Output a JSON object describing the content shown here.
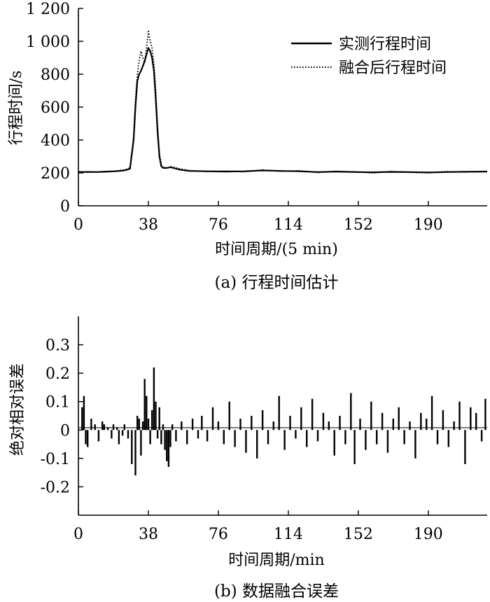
{
  "chart_data": [
    {
      "type": "line",
      "caption": "(a) 行程时间估计",
      "xlabel": "时间周期/(5 min)",
      "ylabel": "行程时间/s",
      "xlim": [
        0,
        222
      ],
      "ylim": [
        0,
        1200
      ],
      "xticks": [
        0,
        38,
        76,
        114,
        152,
        190
      ],
      "yticks": [
        0,
        200,
        400,
        600,
        800,
        1000,
        1200
      ],
      "ytick_labels": [
        "0",
        "200",
        "400",
        "600",
        "800",
        "1 000",
        "1 200"
      ],
      "legend_position": "top-right",
      "series": [
        {
          "name": "实测行程时间",
          "style": "solid",
          "x": [
            0,
            5,
            10,
            15,
            20,
            25,
            28,
            30,
            31,
            32,
            33,
            34,
            35,
            36,
            37,
            38,
            39,
            40,
            41,
            42,
            43,
            44,
            45,
            46,
            48,
            50,
            55,
            60,
            70,
            80,
            90,
            100,
            110,
            120,
            130,
            140,
            150,
            160,
            170,
            180,
            190,
            200,
            210,
            222
          ],
          "values": [
            205,
            206,
            205,
            208,
            210,
            215,
            225,
            400,
            600,
            760,
            800,
            820,
            850,
            880,
            920,
            960,
            940,
            900,
            820,
            650,
            450,
            300,
            240,
            230,
            230,
            235,
            220,
            212,
            210,
            208,
            210,
            215,
            212,
            210,
            205,
            208,
            205,
            204,
            206,
            205,
            203,
            205,
            207,
            208
          ]
        },
        {
          "name": "融合后行程时间",
          "style": "dotted",
          "x": [
            0,
            5,
            10,
            15,
            20,
            25,
            28,
            30,
            31,
            32,
            33,
            34,
            35,
            36,
            37,
            38,
            39,
            40,
            41,
            42,
            43,
            44,
            45,
            46,
            48,
            50,
            55,
            60,
            70,
            80,
            90,
            100,
            110,
            120,
            130,
            140,
            150,
            160,
            170,
            180,
            190,
            200,
            210,
            222
          ],
          "values": [
            208,
            204,
            207,
            205,
            212,
            218,
            230,
            420,
            640,
            800,
            880,
            940,
            900,
            870,
            960,
            1060,
            1000,
            960,
            860,
            700,
            480,
            320,
            250,
            235,
            228,
            238,
            225,
            215,
            208,
            212,
            207,
            218,
            210,
            213,
            202,
            210,
            207,
            200,
            209,
            203,
            200,
            208,
            205,
            210
          ]
        }
      ]
    },
    {
      "type": "bar",
      "caption": "(b)  数据融合误差",
      "xlabel": "时间周期/min",
      "ylabel": "绝对相对误差",
      "xlim": [
        0,
        222
      ],
      "ylim": [
        -0.3,
        0.4
      ],
      "xticks": [
        0,
        38,
        76,
        114,
        152,
        190
      ],
      "yticks": [
        -0.2,
        -0.1,
        0,
        0.1,
        0.2,
        0.3
      ],
      "ytick_labels": [
        "-0.2",
        "-0.1",
        "0",
        "0.1",
        "0.2",
        "0.3"
      ],
      "x": [
        2,
        3,
        4,
        5,
        7,
        9,
        11,
        13,
        14,
        16,
        18,
        19,
        21,
        22,
        24,
        25,
        27,
        29,
        31,
        32,
        33,
        34,
        35,
        36,
        37,
        38,
        39,
        40,
        41,
        42,
        43,
        44,
        45,
        46,
        47,
        48,
        49,
        50,
        51,
        53,
        56,
        59,
        62,
        65,
        67,
        70,
        73,
        76,
        79,
        82,
        85,
        88,
        91,
        94,
        97,
        100,
        103,
        106,
        109,
        112,
        115,
        118,
        121,
        124,
        127,
        130,
        133,
        136,
        139,
        142,
        145,
        148,
        150,
        153,
        156,
        159,
        162,
        165,
        168,
        171,
        174,
        177,
        180,
        183,
        186,
        189,
        192,
        195,
        198,
        201,
        204,
        207,
        210,
        213,
        216,
        219,
        221
      ],
      "values": [
        0.08,
        0.12,
        -0.05,
        -0.06,
        0.04,
        0.02,
        -0.04,
        0.03,
        0.02,
        0.01,
        -0.03,
        0.02,
        0.01,
        -0.05,
        -0.02,
        0.02,
        -0.03,
        -0.12,
        -0.16,
        0.05,
        0.04,
        -0.09,
        0.03,
        0.18,
        0.12,
        0.04,
        -0.05,
        0.07,
        0.22,
        0.1,
        -0.03,
        0.08,
        -0.05,
        0.02,
        -0.07,
        -0.11,
        -0.13,
        -0.06,
        0.02,
        -0.04,
        0.03,
        -0.05,
        0.04,
        -0.03,
        0.05,
        -0.04,
        0.08,
        0.03,
        -0.05,
        0.1,
        -0.06,
        0.04,
        -0.08,
        0.05,
        -0.1,
        0.07,
        -0.05,
        0.03,
        0.12,
        -0.07,
        0.05,
        -0.03,
        0.08,
        -0.06,
        0.11,
        -0.04,
        0.06,
        0.03,
        -0.09,
        0.05,
        -0.05,
        0.13,
        -0.12,
        0.04,
        -0.07,
        0.1,
        -0.05,
        0.06,
        -0.08,
        0.04,
        0.08,
        -0.05,
        0.03,
        -0.1,
        0.06,
        0.04,
        0.12,
        -0.05,
        0.07,
        -0.06,
        0.03,
        0.1,
        -0.12,
        0.08,
        0.06,
        -0.04,
        0.11
      ]
    }
  ]
}
